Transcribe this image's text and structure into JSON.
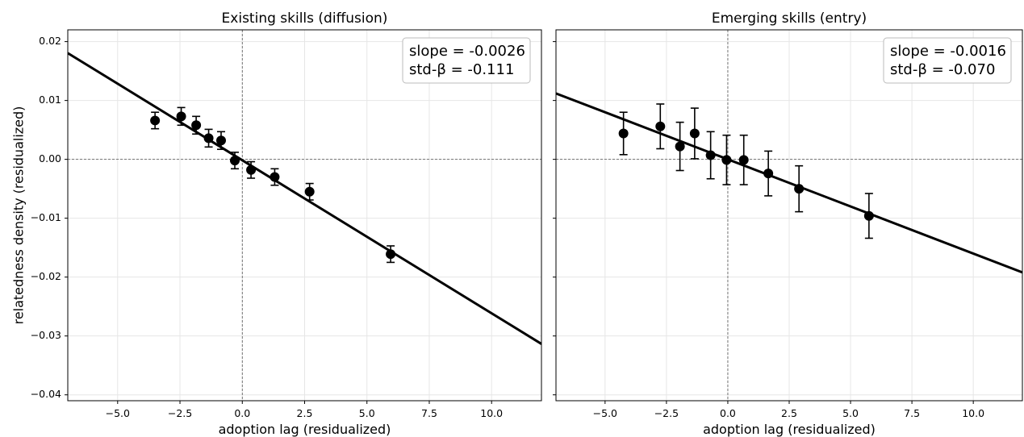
{
  "chart_data": [
    {
      "type": "scatter",
      "title": "Existing skills (diffusion)",
      "xlabel": "adoption lag (residualized)",
      "ylabel": "relatedness density (residualized)",
      "xlim": [
        -7.0,
        12.0
      ],
      "ylim": [
        -0.041,
        0.022
      ],
      "xticks": [
        -5.0,
        -2.5,
        0.0,
        2.5,
        5.0,
        7.5,
        10.0
      ],
      "xtick_labels": [
        "−5.0",
        "−2.5",
        "0.0",
        "2.5",
        "5.0",
        "7.5",
        "10.0"
      ],
      "yticks": [
        0.02,
        0.01,
        0.0,
        -0.01,
        -0.02,
        -0.03,
        -0.04
      ],
      "ytick_labels": [
        "0.02",
        "0.01",
        "0.00",
        "−0.01",
        "−0.02",
        "−0.03",
        "−0.04"
      ],
      "grid": true,
      "reference_lines": {
        "x": 0,
        "y": 0
      },
      "fit": {
        "slope": -0.0026,
        "intercept": -0.00015
      },
      "annotation": [
        "slope = -0.0026",
        "std-β = -0.111"
      ],
      "points": [
        {
          "x": -3.5,
          "y": 0.0066,
          "err": 0.0014
        },
        {
          "x": -2.45,
          "y": 0.0073,
          "err": 0.0015
        },
        {
          "x": -1.85,
          "y": 0.0058,
          "err": 0.0015
        },
        {
          "x": -1.35,
          "y": 0.0036,
          "err": 0.0015
        },
        {
          "x": -0.85,
          "y": 0.0032,
          "err": 0.0015
        },
        {
          "x": -0.3,
          "y": -0.0002,
          "err": 0.0014
        },
        {
          "x": 0.35,
          "y": -0.0018,
          "err": 0.0014
        },
        {
          "x": 1.3,
          "y": -0.003,
          "err": 0.0014
        },
        {
          "x": 2.7,
          "y": -0.0055,
          "err": 0.0014
        },
        {
          "x": 5.95,
          "y": -0.0161,
          "err": 0.0014
        }
      ]
    },
    {
      "type": "scatter",
      "title": "Emerging skills (entry)",
      "xlabel": "adoption lag (residualized)",
      "ylabel": "",
      "xlim": [
        -7.0,
        12.0
      ],
      "ylim": [
        -0.041,
        0.022
      ],
      "xticks": [
        -5.0,
        -2.5,
        0.0,
        2.5,
        5.0,
        7.5,
        10.0
      ],
      "xtick_labels": [
        "−5.0",
        "−2.5",
        "0.0",
        "2.5",
        "5.0",
        "7.5",
        "10.0"
      ],
      "yticks": [
        0.02,
        0.01,
        0.0,
        -0.01,
        -0.02,
        -0.03,
        -0.04
      ],
      "ytick_labels": [],
      "grid": true,
      "reference_lines": {
        "x": 0,
        "y": 0
      },
      "fit": {
        "slope": -0.0016,
        "intercept": 0.0
      },
      "annotation": [
        "slope = -0.0016",
        "std-β = -0.070"
      ],
      "points": [
        {
          "x": -4.25,
          "y": 0.0044,
          "err": 0.0036
        },
        {
          "x": -2.75,
          "y": 0.0056,
          "err": 0.0038
        },
        {
          "x": -1.95,
          "y": 0.0022,
          "err": 0.0041
        },
        {
          "x": -1.35,
          "y": 0.0044,
          "err": 0.0043
        },
        {
          "x": -0.7,
          "y": 0.0007,
          "err": 0.004
        },
        {
          "x": -0.05,
          "y": -0.0001,
          "err": 0.0042
        },
        {
          "x": 0.65,
          "y": -0.0001,
          "err": 0.0042
        },
        {
          "x": 1.65,
          "y": -0.0024,
          "err": 0.0038
        },
        {
          "x": 2.9,
          "y": -0.005,
          "err": 0.0039
        },
        {
          "x": 5.75,
          "y": -0.0096,
          "err": 0.0038
        }
      ]
    }
  ]
}
